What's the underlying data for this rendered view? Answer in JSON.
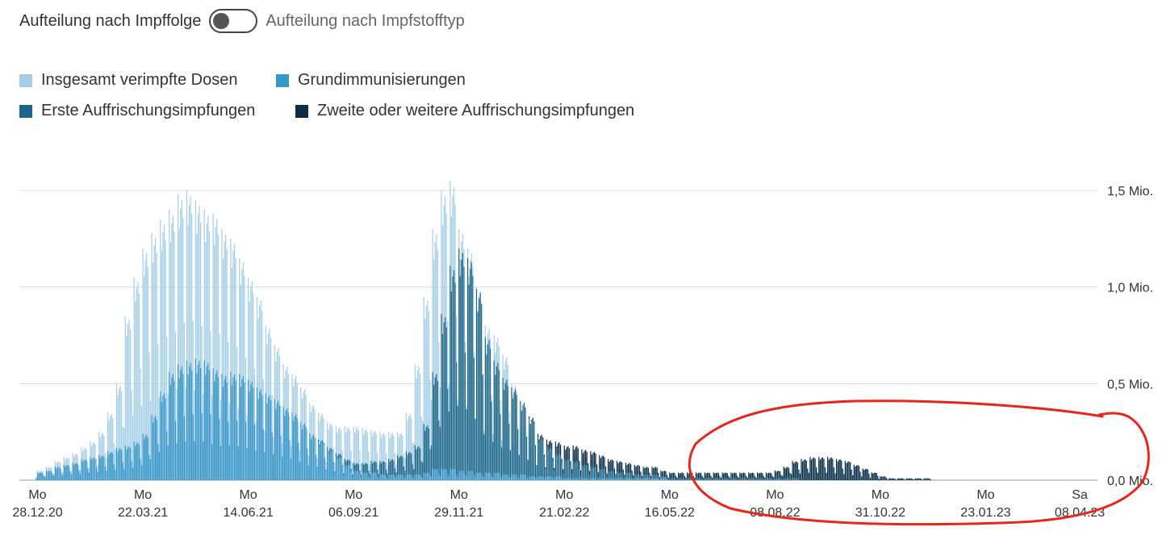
{
  "toggle": {
    "left_label": "Aufteilung nach Impffolge",
    "right_label": "Aufteilung nach Impfstofftyp",
    "state": "off"
  },
  "legend": [
    {
      "label": "Insgesamt verimpfte Dosen",
      "color": "#a6cfe6"
    },
    {
      "label": "Grundimmunisierungen",
      "color": "#3896c9"
    },
    {
      "label": "Erste Auffrischungsimpfungen",
      "color": "#1d6689"
    },
    {
      "label": "Zweite oder weitere Auffrischungsimpfungen",
      "color": "#0b2e47"
    }
  ],
  "annotation": {
    "shape": "hand-drawn ellipse",
    "color": "#e8251b",
    "marks_range": "Jul 2022 – Apr 2023"
  },
  "chart_data": {
    "type": "bar",
    "stacked": true,
    "x_unit": "day",
    "x_start": "2020-12-27",
    "x_end": "2023-04-08",
    "y_ticks": [
      "1,5 Mio.",
      "1,0 Mio.",
      "0,5 Mio.",
      "0,0 Mio."
    ],
    "y_tick_values": [
      1.5,
      1.0,
      0.5,
      0.0
    ],
    "ylim": [
      0,
      1.5
    ],
    "x_ticks": [
      {
        "day": "Mo",
        "date": "28.12.20"
      },
      {
        "day": "Mo",
        "date": "22.03.21"
      },
      {
        "day": "Mo",
        "date": "14.06.21"
      },
      {
        "day": "Mo",
        "date": "06.09.21"
      },
      {
        "day": "Mo",
        "date": "29.11.21"
      },
      {
        "day": "Mo",
        "date": "21.02.22"
      },
      {
        "day": "Mo",
        "date": "16.05.22"
      },
      {
        "day": "Mo",
        "date": "08.08.22"
      },
      {
        "day": "Mo",
        "date": "31.10.22"
      },
      {
        "day": "Mo",
        "date": "23.01.23"
      },
      {
        "day": "Sa",
        "date": "08.04.23"
      }
    ],
    "series": [
      {
        "name": "Grundimmunisierungen",
        "weekly_peak_doses_mio": [
          0.04,
          0.05,
          0.07,
          0.08,
          0.09,
          0.11,
          0.12,
          0.13,
          0.15,
          0.17,
          0.18,
          0.2,
          0.24,
          0.34,
          0.46,
          0.56,
          0.6,
          0.62,
          0.63,
          0.62,
          0.58,
          0.55,
          0.56,
          0.55,
          0.52,
          0.48,
          0.45,
          0.42,
          0.38,
          0.35,
          0.3,
          0.24,
          0.2,
          0.16,
          0.12,
          0.08,
          0.05,
          0.04,
          0.04,
          0.03,
          0.03,
          0.03,
          0.03,
          0.03,
          0.04,
          0.06,
          0.06,
          0.06,
          0.05,
          0.05,
          0.04,
          0.04,
          0.04,
          0.03,
          0.03,
          0.03,
          0.02,
          0.02,
          0.02,
          0.02,
          0.01,
          0.01,
          0.01,
          0.01,
          0.01,
          0.01,
          0.01,
          0.01,
          0.01,
          0.01,
          0.01,
          0.01,
          0.0,
          0.0,
          0.0,
          0.0,
          0.0,
          0.0,
          0.0,
          0.0,
          0.0,
          0.0,
          0.0,
          0.0,
          0.0,
          0.0,
          0.0,
          0.0,
          0.0,
          0.0,
          0.0,
          0.0,
          0.0,
          0.0,
          0.0,
          0.0,
          0.0,
          0.0,
          0.0,
          0.0,
          0.0,
          0.0,
          0.0,
          0.0,
          0.0,
          0.0,
          0.0,
          0.0,
          0.0,
          0.0,
          0.0,
          0.0,
          0.0,
          0.0,
          0.0,
          0.0,
          0.0,
          0.0,
          0.0,
          0.0
        ]
      },
      {
        "name": "Erste Auffrischungsimpfungen",
        "weekly_peak_doses_mio": [
          0.0,
          0.0,
          0.0,
          0.0,
          0.0,
          0.0,
          0.0,
          0.0,
          0.0,
          0.0,
          0.0,
          0.0,
          0.0,
          0.0,
          0.0,
          0.0,
          0.0,
          0.0,
          0.0,
          0.0,
          0.0,
          0.0,
          0.0,
          0.0,
          0.0,
          0.0,
          0.0,
          0.0,
          0.0,
          0.0,
          0.0,
          0.0,
          0.01,
          0.01,
          0.02,
          0.03,
          0.04,
          0.05,
          0.06,
          0.07,
          0.08,
          0.1,
          0.12,
          0.15,
          0.25,
          0.5,
          0.8,
          1.05,
          1.15,
          1.1,
          0.95,
          0.7,
          0.58,
          0.5,
          0.45,
          0.38,
          0.3,
          0.2,
          0.15,
          0.12,
          0.1,
          0.09,
          0.07,
          0.06,
          0.05,
          0.04,
          0.03,
          0.03,
          0.02,
          0.02,
          0.02,
          0.01,
          0.01,
          0.01,
          0.01,
          0.01,
          0.01,
          0.01,
          0.01,
          0.01,
          0.01,
          0.01,
          0.01,
          0.01,
          0.01,
          0.01,
          0.01,
          0.0,
          0.0,
          0.0,
          0.0,
          0.0,
          0.0,
          0.0,
          0.0,
          0.0,
          0.0,
          0.0,
          0.0,
          0.0,
          0.0,
          0.0,
          0.0,
          0.0,
          0.0,
          0.0,
          0.0,
          0.0,
          0.0,
          0.0,
          0.0,
          0.0,
          0.0,
          0.0,
          0.0,
          0.0,
          0.0,
          0.0,
          0.0,
          0.0
        ]
      },
      {
        "name": "Zweite oder weitere Auffrischungsimpfungen",
        "weekly_peak_doses_mio": [
          0.0,
          0.0,
          0.0,
          0.0,
          0.0,
          0.0,
          0.0,
          0.0,
          0.0,
          0.0,
          0.0,
          0.0,
          0.0,
          0.0,
          0.0,
          0.0,
          0.0,
          0.0,
          0.0,
          0.0,
          0.0,
          0.0,
          0.0,
          0.0,
          0.0,
          0.0,
          0.0,
          0.0,
          0.0,
          0.0,
          0.0,
          0.0,
          0.0,
          0.0,
          0.0,
          0.0,
          0.0,
          0.0,
          0.0,
          0.0,
          0.0,
          0.0,
          0.0,
          0.0,
          0.0,
          0.0,
          0.0,
          0.0,
          0.0,
          0.0,
          0.0,
          0.0,
          0.0,
          0.0,
          0.0,
          0.0,
          0.01,
          0.02,
          0.04,
          0.06,
          0.07,
          0.08,
          0.08,
          0.08,
          0.07,
          0.06,
          0.06,
          0.05,
          0.05,
          0.04,
          0.04,
          0.03,
          0.03,
          0.03,
          0.03,
          0.03,
          0.03,
          0.03,
          0.03,
          0.03,
          0.03,
          0.03,
          0.03,
          0.03,
          0.04,
          0.06,
          0.09,
          0.11,
          0.12,
          0.12,
          0.12,
          0.11,
          0.1,
          0.08,
          0.06,
          0.04,
          0.02,
          0.01,
          0.01,
          0.01,
          0.01,
          0.01,
          0.0,
          0.0,
          0.0,
          0.0,
          0.0,
          0.0,
          0.0,
          0.0,
          0.0,
          0.0,
          0.0,
          0.0,
          0.0,
          0.0,
          0.0,
          0.0,
          0.0,
          0.0
        ]
      },
      {
        "name": "Insgesamt verimpfte Dosen",
        "weekly_peak_doses_mio": [
          0.05,
          0.07,
          0.1,
          0.12,
          0.14,
          0.17,
          0.2,
          0.25,
          0.35,
          0.5,
          0.85,
          1.05,
          1.2,
          1.28,
          1.35,
          1.4,
          1.48,
          1.5,
          1.45,
          1.4,
          1.38,
          1.3,
          1.25,
          1.15,
          1.05,
          0.95,
          0.8,
          0.7,
          0.6,
          0.55,
          0.48,
          0.4,
          0.35,
          0.3,
          0.28,
          0.28,
          0.28,
          0.27,
          0.26,
          0.25,
          0.25,
          0.25,
          0.35,
          0.6,
          0.95,
          1.3,
          1.5,
          1.55,
          1.3,
          1.2,
          1.0,
          0.8,
          0.75,
          0.65,
          0.5,
          0.3,
          0.28,
          0.2,
          0.15,
          0.15,
          0.14,
          0.14,
          0.13,
          0.11,
          0.09,
          0.08,
          0.07,
          0.06,
          0.05,
          0.04,
          0.04,
          0.03,
          0.03,
          0.03,
          0.03,
          0.03,
          0.03,
          0.03,
          0.03,
          0.03,
          0.03,
          0.03,
          0.03,
          0.03,
          0.04,
          0.06,
          0.09,
          0.11,
          0.12,
          0.12,
          0.12,
          0.11,
          0.1,
          0.08,
          0.06,
          0.04,
          0.02,
          0.01,
          0.01,
          0.01,
          0.01,
          0.01,
          0.0,
          0.0,
          0.0,
          0.0,
          0.0,
          0.0,
          0.0,
          0.0,
          0.0,
          0.0,
          0.0,
          0.0,
          0.0,
          0.0,
          0.0,
          0.0,
          0.0,
          0.0
        ]
      }
    ]
  }
}
